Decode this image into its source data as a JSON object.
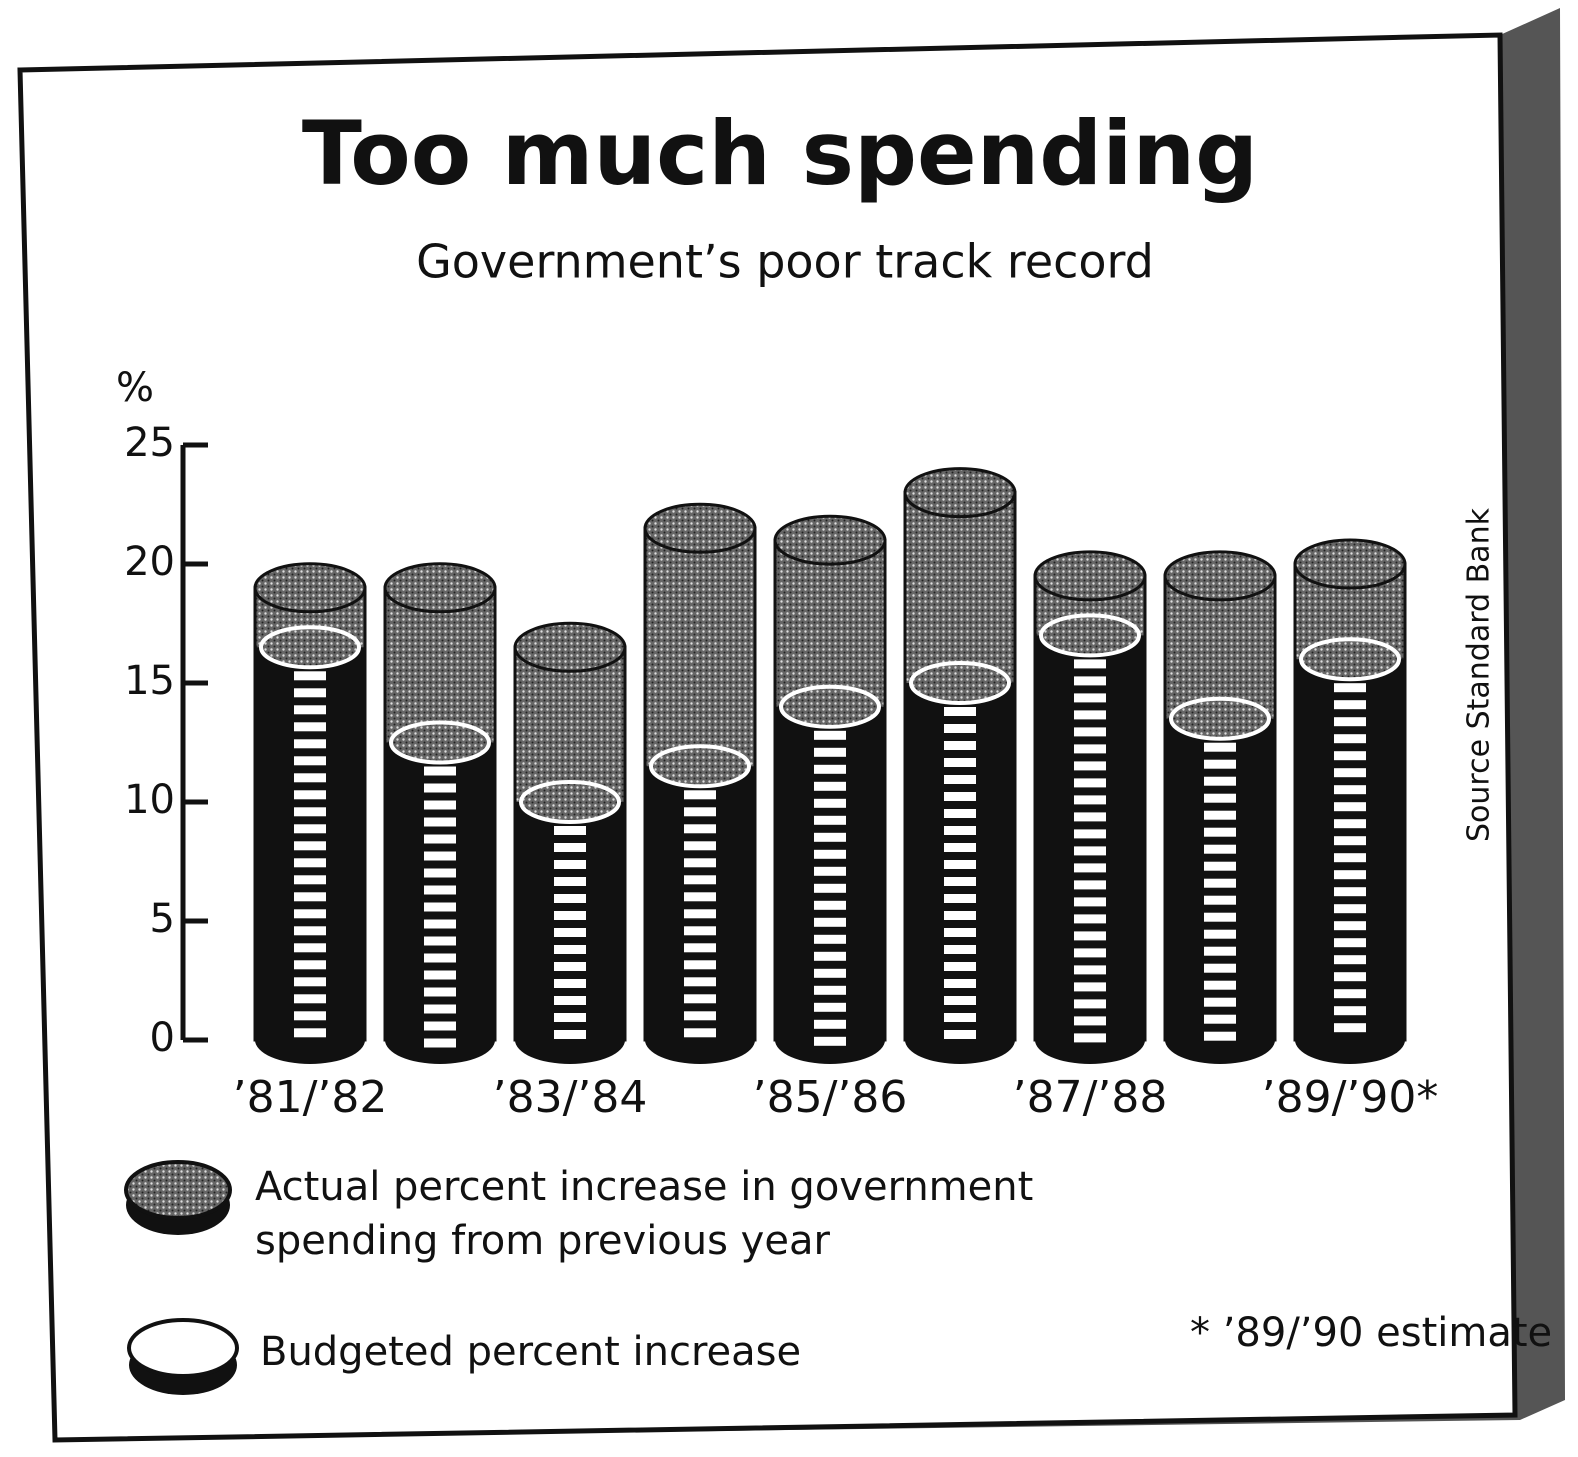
{
  "chart_data": {
    "type": "bar",
    "title": "Too much spending",
    "subtitle": "Government’s poor track record",
    "y_label": "%",
    "source": "Source  Standard Bank",
    "footnote": "* ’89/’90 estimate",
    "categories": [
      "’81/’82",
      null,
      "’83/’84",
      null,
      "’85/’86",
      null,
      "’87/’88",
      null,
      "’89/’90*"
    ],
    "series": [
      {
        "name": "Actual percent increase in government spending from previous year",
        "color": "#8a8a8a",
        "values": [
          19,
          19,
          16.5,
          21.5,
          21,
          23,
          19.5,
          19.5,
          20
        ]
      },
      {
        "name": "Budgeted percent increase",
        "color": "#ffffff",
        "values": [
          16.5,
          12.5,
          10,
          11.5,
          14,
          15,
          17,
          13.5,
          16
        ]
      }
    ],
    "ylim": [
      0,
      25
    ],
    "yticks": [
      0,
      5,
      10,
      15,
      20,
      25
    ]
  }
}
